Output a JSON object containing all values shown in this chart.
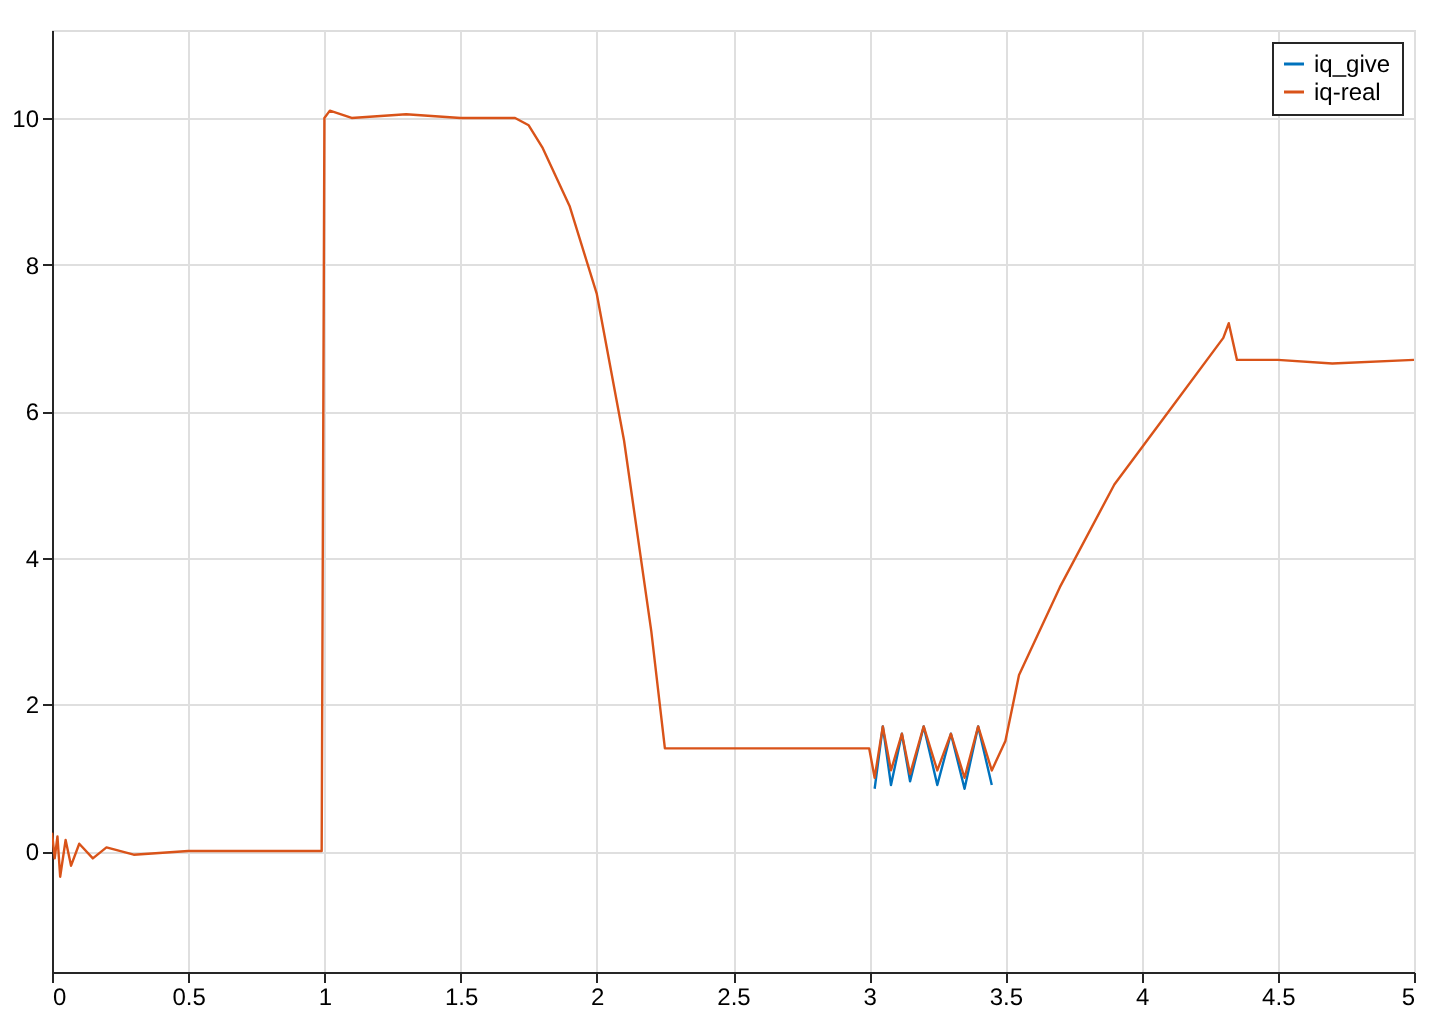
{
  "chart_data": {
    "type": "line",
    "xlim": [
      0,
      5
    ],
    "ylim": [
      -1.65,
      11.2
    ],
    "xticks": [
      0,
      0.5,
      1,
      1.5,
      2,
      2.5,
      3,
      3.5,
      4,
      4.5,
      5
    ],
    "yticks": [
      0,
      2,
      4,
      6,
      8,
      10
    ],
    "grid": true,
    "legend": "top right",
    "line_style": "solid",
    "marker": "none",
    "series": [
      {
        "name": "iq_give",
        "color": "#0072bd",
        "x": [
          3.02,
          3.05,
          3.08,
          3.12,
          3.15,
          3.2,
          3.25,
          3.3,
          3.35,
          3.4,
          3.45
        ],
        "values": [
          0.85,
          1.7,
          0.9,
          1.6,
          0.95,
          1.7,
          0.9,
          1.6,
          0.85,
          1.7,
          0.9
        ]
      },
      {
        "name": "iq-real",
        "color": "#d95319",
        "x": [
          0,
          0.01,
          0.02,
          0.03,
          0.05,
          0.07,
          0.1,
          0.15,
          0.2,
          0.3,
          0.5,
          0.99,
          1.0,
          1.02,
          1.1,
          1.3,
          1.5,
          1.7,
          1.75,
          1.8,
          1.9,
          2.0,
          2.1,
          2.2,
          2.25,
          2.5,
          3.0,
          3.02,
          3.05,
          3.08,
          3.12,
          3.15,
          3.2,
          3.25,
          3.3,
          3.35,
          3.4,
          3.45,
          3.5,
          3.55,
          3.7,
          3.9,
          4.1,
          4.3,
          4.32,
          4.35,
          4.5,
          4.7,
          5.0
        ],
        "values": [
          0.25,
          -0.1,
          0.2,
          -0.35,
          0.15,
          -0.2,
          0.1,
          -0.1,
          0.05,
          -0.05,
          0,
          0,
          10.0,
          10.1,
          10.0,
          10.05,
          10.0,
          10.0,
          9.9,
          9.6,
          8.8,
          7.6,
          5.6,
          3.0,
          1.4,
          1.4,
          1.4,
          1.0,
          1.7,
          1.1,
          1.6,
          1.05,
          1.7,
          1.1,
          1.6,
          1.0,
          1.7,
          1.1,
          1.5,
          2.4,
          3.6,
          5.0,
          6.0,
          7.0,
          7.2,
          6.7,
          6.7,
          6.65,
          6.7
        ]
      }
    ]
  }
}
